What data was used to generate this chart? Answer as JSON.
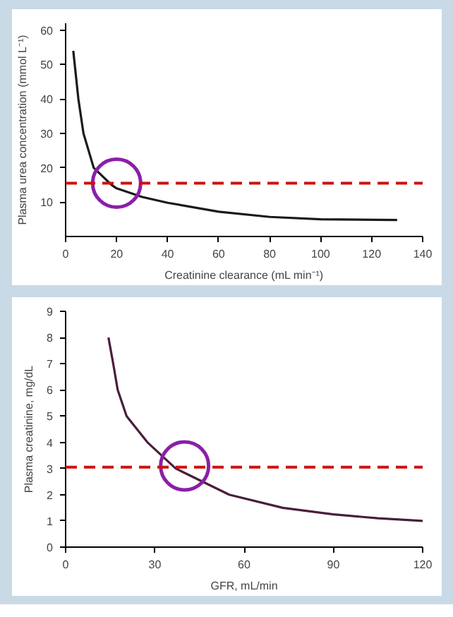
{
  "chart_data": [
    {
      "type": "line",
      "xlabel": "Creatinine clearance (mL min⁻¹)",
      "ylabel": "Plasma urea concentration (mmol L⁻¹)",
      "xlim": [
        0,
        140
      ],
      "ylim": [
        0,
        62
      ],
      "xticks": [
        0,
        20,
        40,
        60,
        80,
        100,
        120,
        140
      ],
      "yticks": [
        10,
        20,
        30,
        40,
        50,
        60
      ],
      "grid": false,
      "series": [
        {
          "color": "#1a1a1a",
          "x": [
            3,
            5,
            7,
            11,
            18,
            20,
            30,
            40,
            60,
            80,
            100,
            130
          ],
          "values": [
            54,
            40,
            30,
            20,
            15,
            14,
            11.5,
            9.8,
            7.2,
            5.7,
            5,
            4.8
          ]
        },
        {
          "type": "scatter",
          "marker": "circle",
          "color": "#8b1fa8",
          "x": [
            20
          ],
          "values": [
            15.5
          ]
        }
      ],
      "ref_lines": [
        {
          "axis": "y",
          "value": 15.5,
          "color": "#cc1111",
          "line_style": "dashed"
        }
      ]
    },
    {
      "type": "line",
      "xlabel": "GFR, mL/min",
      "ylabel": "Plasma creatinine, mg/dL",
      "xlim": [
        0,
        120
      ],
      "ylim": [
        0,
        9
      ],
      "xticks": [
        0,
        30,
        60,
        90,
        120
      ],
      "yticks": [
        0,
        1,
        2,
        3,
        4,
        5,
        6,
        7,
        8,
        9
      ],
      "grid": false,
      "series": [
        {
          "color": "#4a1e3c",
          "x": [
            14.4,
            16,
            17.5,
            20.5,
            27.5,
            37,
            55,
            73,
            90,
            105,
            120
          ],
          "values": [
            8,
            7,
            6,
            5,
            4,
            3,
            2,
            1.5,
            1.25,
            1.1,
            1
          ]
        },
        {
          "type": "scatter",
          "marker": "circle",
          "color": "#8b1fa8",
          "x": [
            40
          ],
          "values": [
            3.1
          ]
        }
      ],
      "ref_lines": [
        {
          "axis": "y",
          "value": 3.05,
          "color": "#cc1111",
          "line_style": "dashed"
        }
      ]
    }
  ]
}
